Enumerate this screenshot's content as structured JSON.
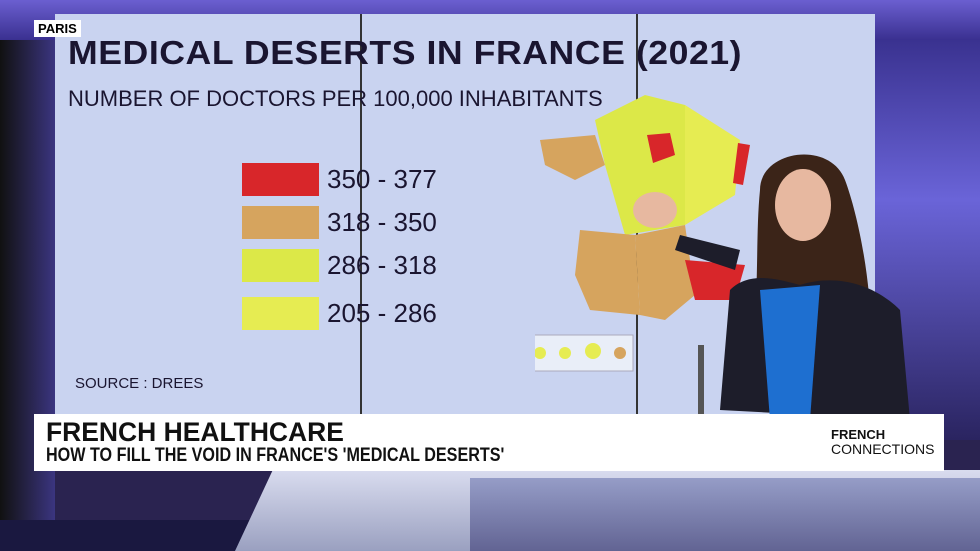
{
  "location_badge": "PARIS",
  "screen": {
    "title": "MEDICAL DESERTS IN FRANCE (2021)",
    "subtitle": "NUMBER OF DOCTORS PER 100,000 INHABITANTS",
    "legend": [
      {
        "label": "350 - 377",
        "color": "#d8262a"
      },
      {
        "label": "318 - 350",
        "color": "#d6a45e"
      },
      {
        "label": "286 - 318",
        "color": "#dce848"
      },
      {
        "label": "205 - 286",
        "color": "#e6ec52"
      }
    ],
    "source": "SOURCE : DREES"
  },
  "lower_third": {
    "title": "FRENCH HEALTHCARE",
    "subtitle": "HOW TO FILL THE VOID IN FRANCE'S 'MEDICAL DESERTS'",
    "show_name_line1": "FRENCH",
    "show_name_line2": "CONNECTIONS"
  }
}
